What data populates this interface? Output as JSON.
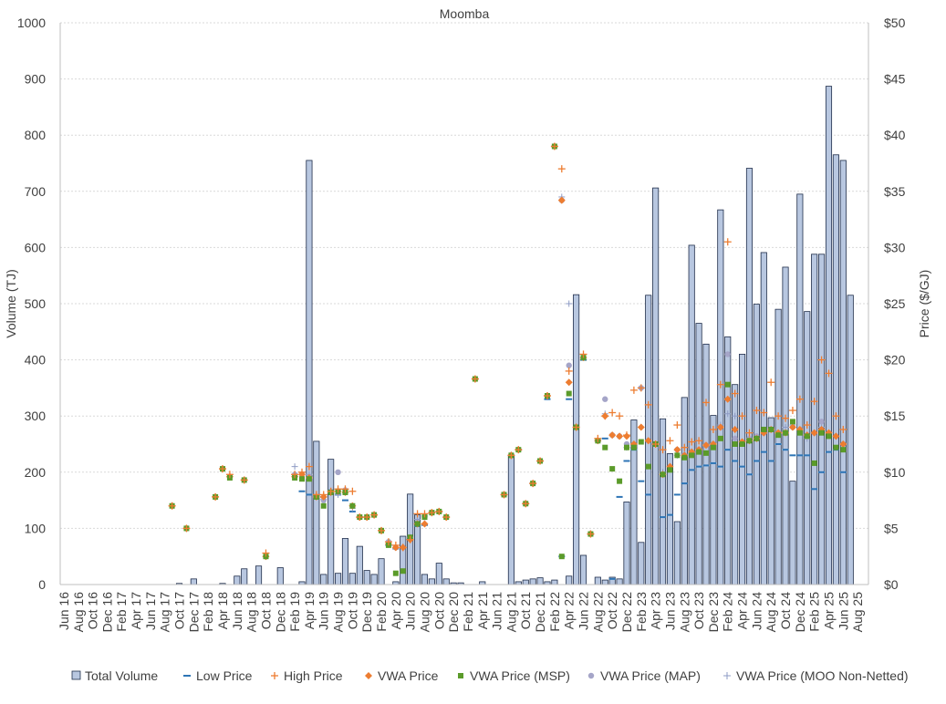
{
  "chart_data": {
    "type": "bar",
    "title": "Moomba",
    "ylabel": "Volume (TJ)",
    "y2label": "Price ($/GJ)",
    "ylim": [
      0,
      1000
    ],
    "y2lim": [
      0,
      50
    ],
    "yticks": [
      "0",
      "100",
      "200",
      "300",
      "400",
      "500",
      "600",
      "700",
      "800",
      "900",
      "1000"
    ],
    "y2ticks": [
      "$0",
      "$5",
      "$10",
      "$15",
      "$20",
      "$25",
      "$30",
      "$35",
      "$40",
      "$45",
      "$50"
    ],
    "x_tick_labels": [
      "Jun 16",
      "Aug 16",
      "Oct 16",
      "Dec 16",
      "Feb 17",
      "Apr 17",
      "Jun 17",
      "Aug 17",
      "Oct 17",
      "Dec 17",
      "Feb 18",
      "Apr 18",
      "Jun 18",
      "Aug 18",
      "Oct 18",
      "Dec 18",
      "Feb 19",
      "Apr 19",
      "Jun 19",
      "Aug 19",
      "Oct 19",
      "Dec 19",
      "Feb 20",
      "Apr 20",
      "Jun 20",
      "Aug 20",
      "Oct 20",
      "Dec 20",
      "Feb 21",
      "Apr 21",
      "Jun 21",
      "Aug 21",
      "Oct 21",
      "Dec 21",
      "Feb 22",
      "Apr 22",
      "Jun 22",
      "Aug 22",
      "Oct 22",
      "Dec 22",
      "Feb 23",
      "Apr 23",
      "Jun 23",
      "Aug 23",
      "Oct 23",
      "Dec 23",
      "Feb 24",
      "Apr 24",
      "Jun 24",
      "Aug 24",
      "Oct 24",
      "Dec 24",
      "Feb 25",
      "Apr 25",
      "Jun 25",
      "Aug 25"
    ],
    "legend": [
      "Total Volume",
      "Low Price",
      "High Price",
      "VWA Price",
      "VWA Price (MSP)",
      "VWA Price (MAP)",
      "VWA Price (MOO Non-Netted)"
    ],
    "legend_position": "bottom",
    "series": [
      {
        "name": "Total Volume",
        "values": [
          0,
          0,
          0,
          0,
          0,
          0,
          0,
          0,
          0,
          0,
          0,
          0,
          0,
          0,
          0,
          0,
          0,
          0,
          0,
          0,
          0,
          0,
          0,
          0,
          0,
          0,
          0,
          0,
          0,
          0,
          0,
          0,
          0,
          0,
          0,
          0,
          0,
          0,
          0,
          0,
          0,
          0,
          0,
          0,
          0,
          0,
          0,
          0,
          0,
          0,
          0,
          0,
          0,
          0,
          0,
          0,
          0,
          0,
          0,
          0,
          0,
          0,
          0,
          0,
          0,
          0,
          0,
          0,
          0,
          0,
          0,
          0,
          0,
          0,
          0,
          0,
          0,
          0,
          0,
          0,
          0,
          0,
          0,
          0,
          0,
          0,
          0,
          0,
          0,
          0,
          0,
          0,
          0,
          0,
          0,
          0,
          0,
          0,
          0,
          0,
          0,
          0,
          0,
          0,
          0,
          0,
          0,
          0,
          0,
          0,
          0,
          0,
          0,
          0,
          0,
          0,
          0,
          0,
          0,
          0,
          0,
          0,
          0,
          0,
          0,
          0,
          0,
          0,
          0,
          0,
          0,
          0,
          0,
          0,
          0,
          0,
          0,
          0,
          0,
          0
        ]
      },
      {
        "name": "Low Price",
        "values": [
          null,
          null,
          null,
          null,
          null,
          null,
          null,
          null,
          null,
          null,
          null,
          null,
          null,
          null,
          null,
          null,
          null,
          null,
          null,
          null,
          null,
          null,
          null,
          null,
          null,
          null,
          null,
          null,
          null,
          null,
          null,
          null,
          null,
          null,
          null,
          null,
          null,
          null,
          null,
          null,
          null,
          null,
          null,
          null,
          null,
          null,
          null,
          null,
          null,
          null,
          null,
          null,
          null,
          null,
          null,
          null,
          null,
          null,
          null,
          null,
          null,
          null,
          null,
          null,
          null,
          null,
          null,
          null,
          null,
          null,
          null,
          null,
          null,
          null,
          null,
          null,
          null,
          null,
          null,
          null,
          null,
          null,
          null,
          null,
          null,
          null,
          null,
          null,
          null,
          null,
          null,
          null,
          null,
          null,
          null,
          null,
          null,
          null,
          null,
          null,
          null,
          null,
          null,
          null,
          null,
          null,
          null,
          null,
          null,
          null,
          null,
          null,
          null,
          null,
          null,
          null,
          null,
          null,
          null,
          null,
          null,
          null,
          null,
          null,
          null,
          null,
          null,
          null,
          null,
          null,
          null,
          null,
          null,
          null,
          null,
          null,
          null,
          null,
          null,
          null
        ]
      },
      {
        "name": "High Price",
        "values": [
          null,
          null,
          null,
          null,
          null,
          null,
          null,
          null,
          null,
          null,
          null,
          null,
          null,
          null,
          null,
          null,
          null,
          null,
          null,
          null,
          null,
          null,
          null,
          null,
          null,
          null,
          null,
          null,
          null,
          null,
          null,
          null,
          null,
          null,
          null,
          null,
          null,
          null,
          null,
          null,
          null,
          null,
          null,
          null,
          null,
          null,
          null,
          null,
          null,
          null,
          null,
          null,
          null,
          null,
          null,
          null,
          null,
          null,
          null,
          null,
          null,
          null,
          null,
          null,
          null,
          null,
          null,
          null,
          null,
          null,
          null,
          null,
          null,
          null,
          null,
          null,
          null,
          null,
          null,
          null,
          null,
          null,
          null,
          null,
          null,
          null,
          null,
          null,
          null,
          null,
          null,
          null,
          null,
          null,
          null,
          null,
          null,
          null,
          null,
          null,
          null,
          null,
          null,
          null,
          null,
          null,
          null,
          null,
          null,
          null,
          null,
          null,
          null,
          null,
          null,
          null,
          null,
          null,
          null,
          null,
          null,
          null,
          null,
          null,
          null,
          null,
          null,
          null,
          null,
          null,
          null,
          null,
          null,
          null,
          null,
          null,
          null,
          null,
          null,
          null
        ]
      },
      {
        "name": "VWA Price",
        "values": [
          null,
          null,
          null,
          null,
          null,
          null,
          null,
          null,
          null,
          null,
          null,
          null,
          null,
          null,
          null,
          null,
          null,
          null,
          null,
          null,
          null,
          null,
          null,
          null,
          null,
          null,
          null,
          null,
          null,
          null,
          null,
          null,
          null,
          null,
          null,
          null,
          null,
          null,
          null,
          null,
          null,
          null,
          null,
          null,
          null,
          null,
          null,
          null,
          null,
          null,
          null,
          null,
          null,
          null,
          null,
          null,
          null,
          null,
          null,
          null,
          null,
          null,
          null,
          null,
          null,
          null,
          null,
          null,
          null,
          null,
          null,
          null,
          null,
          null,
          null,
          null,
          null,
          null,
          null,
          null,
          null,
          null,
          null,
          null,
          null,
          null,
          null,
          null,
          null,
          null,
          null,
          null,
          null,
          null,
          null,
          null,
          null,
          null,
          null,
          null,
          null,
          null,
          null,
          null,
          null,
          null,
          null,
          null,
          null,
          null,
          null,
          null,
          null,
          null,
          null,
          null,
          null,
          null,
          null,
          null,
          null,
          null,
          null,
          null,
          null,
          null,
          null,
          null,
          null,
          null,
          null,
          null,
          null,
          null,
          null,
          null,
          null,
          null,
          null,
          null
        ]
      },
      {
        "name": "VWA Price (MSP)",
        "values": [
          null,
          null,
          null,
          null,
          null,
          null,
          null,
          null,
          null,
          null,
          null,
          null,
          null,
          null,
          null,
          null,
          null,
          null,
          null,
          null,
          null,
          null,
          null,
          null,
          null,
          null,
          null,
          null,
          null,
          null,
          null,
          null,
          null,
          null,
          null,
          null,
          null,
          null,
          null,
          null,
          null,
          null,
          null,
          null,
          null,
          null,
          null,
          null,
          null,
          null,
          null,
          null,
          null,
          null,
          null,
          null,
          null,
          null,
          null,
          null,
          null,
          null,
          null,
          null,
          null,
          null,
          null,
          null,
          null,
          null,
          null,
          null,
          null,
          null,
          null,
          null,
          null,
          null,
          null,
          null,
          null,
          null,
          null,
          null,
          null,
          null,
          null,
          null,
          null,
          null,
          null,
          null,
          null,
          null,
          null,
          null,
          null,
          null,
          null,
          null,
          null,
          null,
          null,
          null,
          null,
          null,
          null,
          null,
          null,
          null,
          null,
          null,
          null,
          null,
          null,
          null,
          null,
          null,
          null,
          null,
          null,
          null,
          null,
          null,
          null,
          null,
          null,
          null,
          null,
          null,
          null,
          null,
          null,
          null,
          null,
          null,
          null,
          null,
          null,
          null
        ]
      },
      {
        "name": "VWA Price (MAP)",
        "values": [
          null,
          null,
          null,
          null,
          null,
          null,
          null,
          null,
          null,
          null,
          null,
          null,
          null,
          null,
          null,
          null,
          null,
          null,
          null,
          null,
          null,
          null,
          null,
          null,
          null,
          null,
          null,
          null,
          null,
          null,
          null,
          null,
          null,
          null,
          null,
          null,
          null,
          null,
          null,
          null,
          null,
          null,
          null,
          null,
          null,
          null,
          null,
          null,
          null,
          null,
          null,
          null,
          null,
          null,
          null,
          null,
          null,
          null,
          null,
          null,
          null,
          null,
          null,
          null,
          null,
          null,
          null,
          null,
          null,
          null,
          null,
          null,
          null,
          null,
          null,
          null,
          null,
          null,
          null,
          null,
          null,
          null,
          null,
          null,
          null,
          null,
          null,
          null,
          null,
          null,
          null,
          null,
          null,
          null,
          null,
          null,
          null,
          null,
          null,
          null,
          null,
          null,
          null,
          null,
          null,
          null,
          null,
          null,
          null,
          null,
          null,
          null,
          null,
          null,
          null,
          null,
          null,
          null,
          null,
          null,
          null,
          null,
          null,
          null,
          null,
          null,
          null,
          null,
          null,
          null,
          null,
          null,
          null,
          null,
          null,
          null,
          null,
          null,
          null,
          null
        ]
      },
      {
        "name": "VWA Price (MOO Non-Netted)",
        "values": [
          null,
          null,
          null,
          null,
          null,
          null,
          null,
          null,
          null,
          null,
          null,
          null,
          null,
          null,
          null,
          null,
          null,
          null,
          null,
          null,
          null,
          null,
          null,
          null,
          null,
          null,
          null,
          null,
          null,
          null,
          null,
          null,
          null,
          null,
          null,
          null,
          null,
          null,
          null,
          null,
          null,
          null,
          null,
          null,
          null,
          null,
          null,
          null,
          null,
          null,
          null,
          null,
          null,
          null,
          null,
          null,
          null,
          null,
          null,
          null,
          null,
          null,
          null,
          null,
          null,
          null,
          null,
          null,
          null,
          null,
          null,
          null,
          null,
          null,
          null,
          null,
          null,
          null,
          null,
          null,
          null,
          null,
          null,
          null,
          null,
          null,
          null,
          null,
          null,
          null,
          null,
          null,
          null,
          null,
          null,
          null,
          null,
          null,
          null,
          null,
          null,
          null,
          null,
          null,
          null,
          null,
          null,
          null,
          null,
          null,
          null,
          null,
          null,
          null,
          null,
          null,
          null,
          null,
          null,
          null,
          null,
          null,
          null,
          null,
          null,
          null,
          null,
          null,
          null,
          null,
          null,
          null,
          null,
          null,
          null,
          null,
          null,
          null,
          null,
          null
        ]
      }
    ]
  }
}
